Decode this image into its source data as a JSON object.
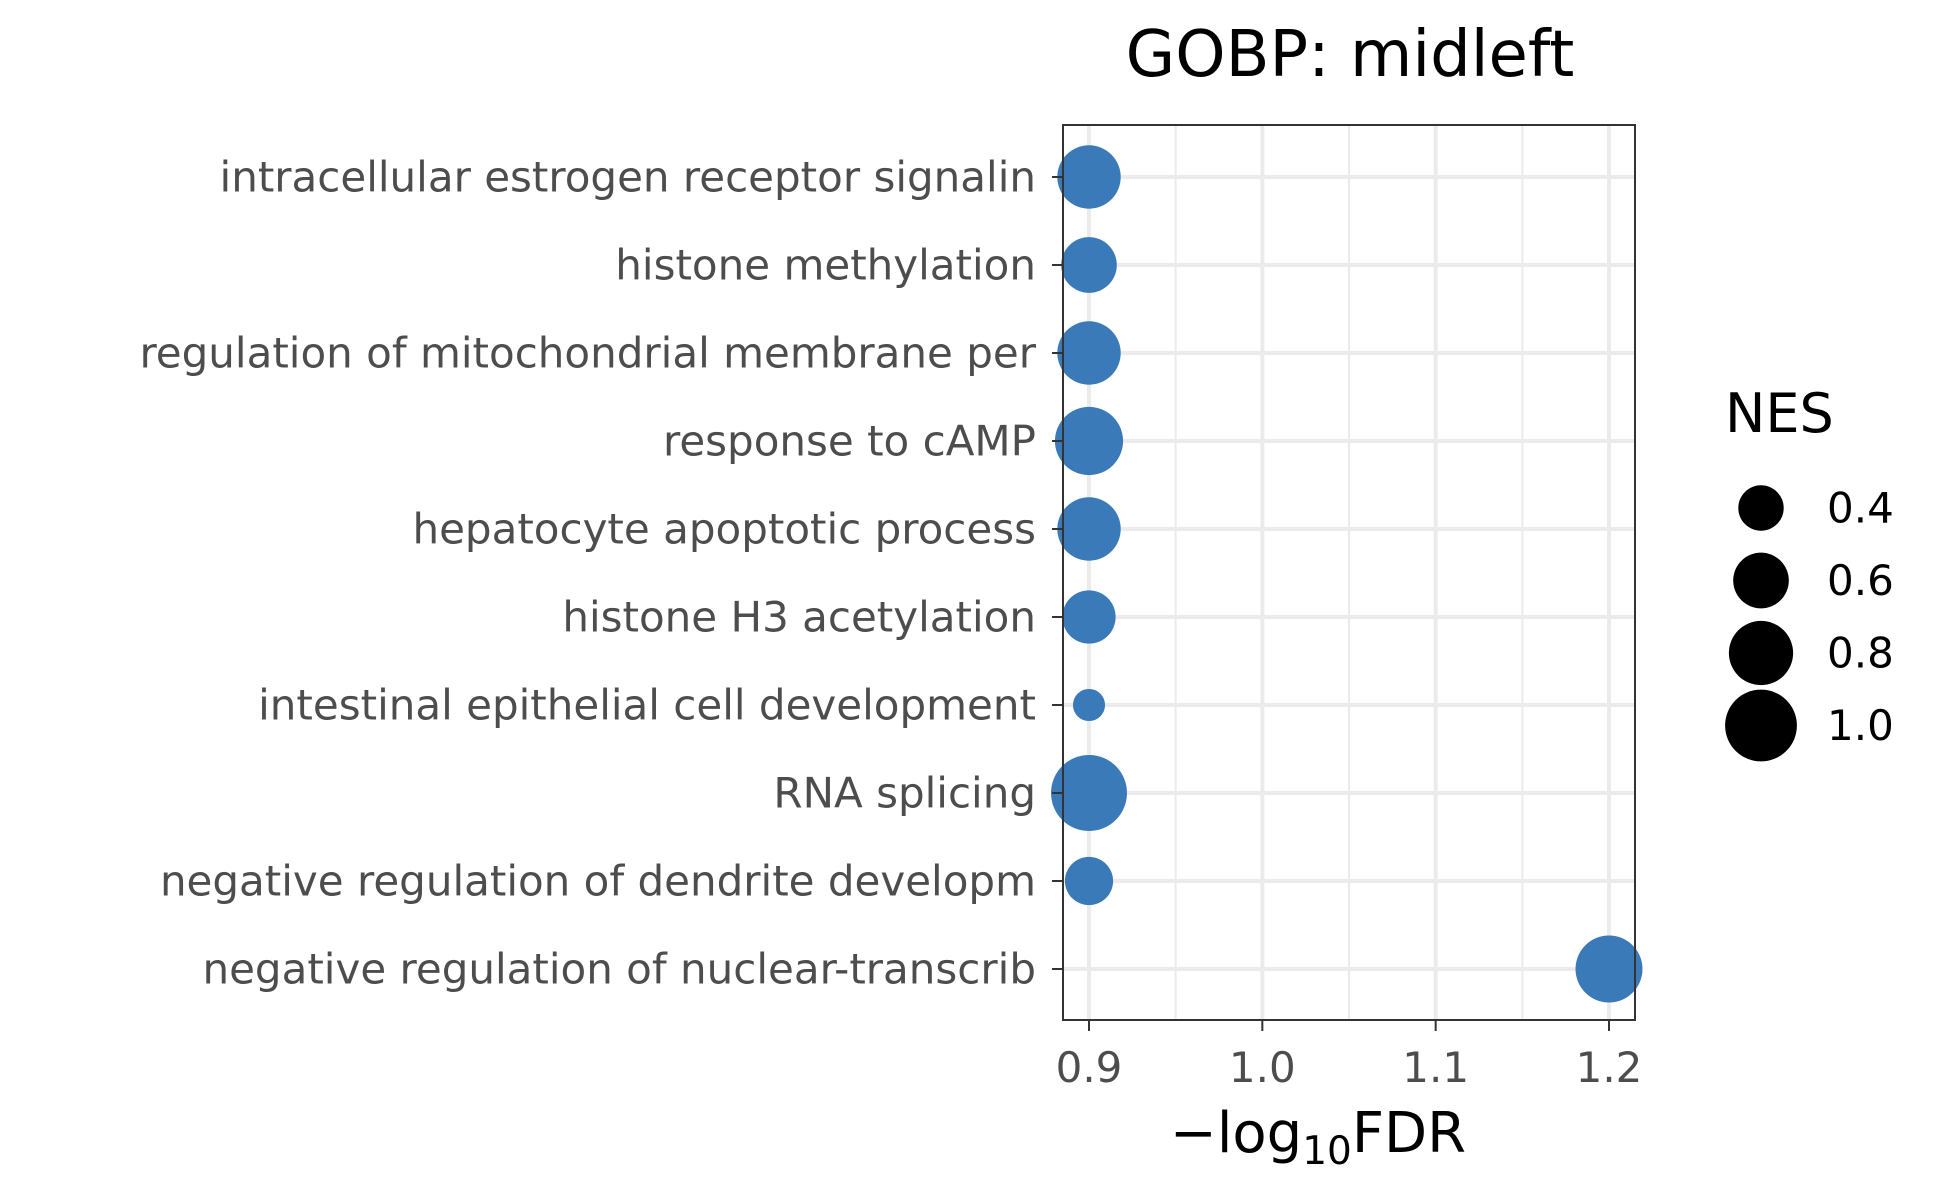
{
  "chart_data": {
    "type": "scatter",
    "title": "GOBP: midleft",
    "xlabel": {
      "prefix": "−log",
      "subscript": "10",
      "suffix": "FDR"
    },
    "ylabel": "",
    "x_ticks": [
      "0.9",
      "1.0",
      "1.1",
      "1.2"
    ],
    "xlim": [
      0.885,
      1.215
    ],
    "categories": [
      "intracellular estrogen receptor signalin",
      "histone methylation",
      "regulation of mitochondrial membrane per",
      "response to cAMP",
      "hepatocyte apoptotic process",
      "histone H3 acetylation",
      "intestinal epithelial cell development",
      "RNA splicing",
      "negative regulation of dendrite developm",
      "negative regulation of nuclear-transcrib"
    ],
    "series": [
      {
        "x": [
          0.9,
          0.9,
          0.9,
          0.9,
          0.9,
          0.9,
          0.9,
          0.9,
          0.9,
          1.2
        ],
        "size": [
          0.78,
          0.6,
          0.78,
          0.9,
          0.78,
          0.55,
          0.2,
          1.12,
          0.45,
          0.87
        ],
        "color": "#3a7ab9"
      }
    ],
    "legend": {
      "title": "NES",
      "position": "right",
      "entries": [
        {
          "label": "0.4",
          "value": 0.4
        },
        {
          "label": "0.6",
          "value": 0.6
        },
        {
          "label": "0.8",
          "value": 0.8
        },
        {
          "label": "1.0",
          "value": 1.0
        }
      ]
    },
    "grid": true
  },
  "colors": {
    "point": "#3a7ab9",
    "legend_point": "#000000",
    "grid": "#ebebeb",
    "panel_border": "#333333",
    "axis_text": "#4d4d4d",
    "title_text": "#000000"
  }
}
